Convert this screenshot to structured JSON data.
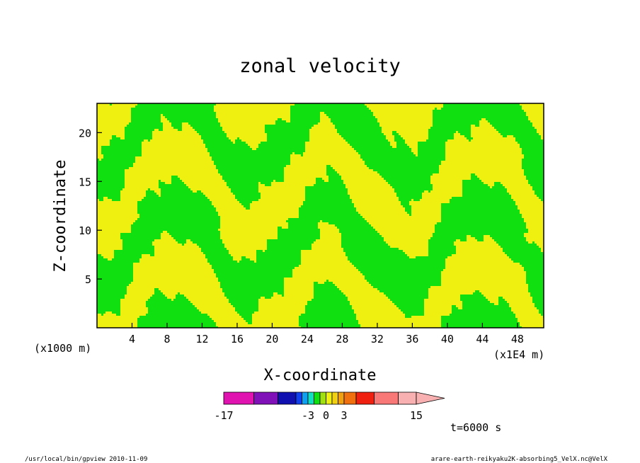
{
  "chart_data": {
    "type": "heatmap",
    "title": "zonal velocity",
    "xlabel": "X-coordinate",
    "ylabel": "Z-coordinate",
    "x_unit_left": "(x1000 m)",
    "x_unit_right": "(x1E4 m)",
    "xlim": [
      0,
      51
    ],
    "ylim": [
      0,
      23
    ],
    "x_ticks": [
      4,
      8,
      12,
      16,
      20,
      24,
      28,
      32,
      36,
      40,
      44,
      48
    ],
    "y_ticks": [
      5,
      10,
      15,
      20
    ],
    "colorbar": {
      "levels": [
        -17,
        -12,
        -8,
        -5,
        -4,
        -3,
        -2,
        -1,
        0,
        1,
        2,
        3,
        5,
        8,
        12,
        15
      ],
      "colors": [
        "#e012b0",
        "#8010b8",
        "#1010b0",
        "#1040f0",
        "#10a0f0",
        "#10e0c0",
        "#10e010",
        "#a0e010",
        "#f0f010",
        "#f0d010",
        "#f0a010",
        "#f07010",
        "#f02010",
        "#f87878",
        "#f8b0b0"
      ],
      "labels": [
        {
          "text": "-17",
          "value": -17
        },
        {
          "text": "-3",
          "value": -3
        },
        {
          "text": "0",
          "value": 0
        },
        {
          "text": "3",
          "value": 3
        },
        {
          "text": "15",
          "value": 15
        }
      ]
    },
    "annotation_time": "t=6000 s",
    "legend": "bottom-center",
    "grid": false
  },
  "footer": {
    "left": "/usr/local/bin/gpview  2010-11-09",
    "right": "arare-earth-reikyaku2K-absorbing5_VelX.nc@VelX"
  }
}
